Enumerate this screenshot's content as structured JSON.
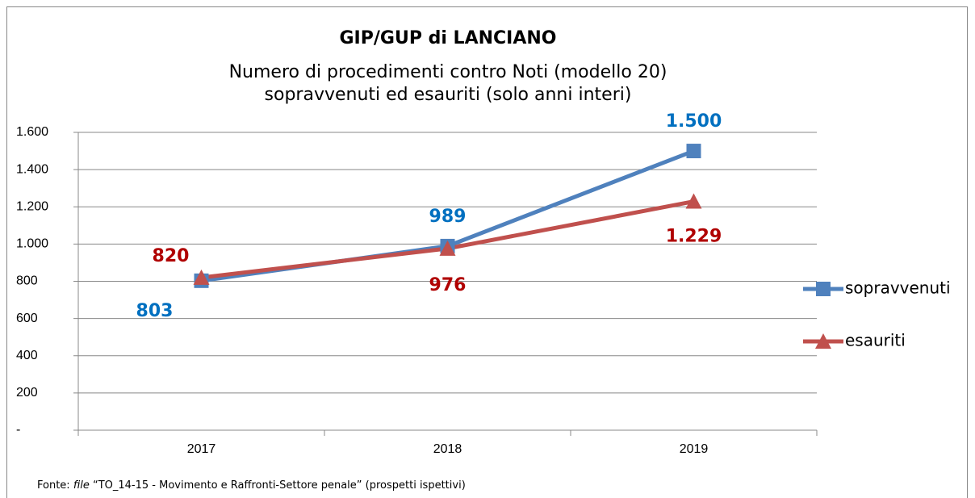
{
  "chart_data": {
    "type": "line",
    "title": "GIP/GUP di LANCIANO",
    "subtitle": [
      "Numero di procedimenti contro Noti (modello 20)",
      "sopravvenuti ed esauriti (solo anni interi)"
    ],
    "categories": [
      "2017",
      "2018",
      "2019"
    ],
    "series": [
      {
        "name": "sopravvenuti",
        "color": "#4f81bd",
        "label_color": "#0070c0",
        "marker": "square",
        "values": [
          803,
          989,
          1500
        ],
        "value_labels": [
          "803",
          "989",
          "1.500"
        ]
      },
      {
        "name": "esauriti",
        "color": "#c0504d",
        "label_color": "#b00000",
        "marker": "triangle",
        "values": [
          820,
          976,
          1229
        ],
        "value_labels": [
          "820",
          "976",
          "1.229"
        ]
      }
    ],
    "ylim": [
      0,
      1600
    ],
    "yticks": [
      {
        "value": 0,
        "label": "-"
      },
      200,
      400,
      600,
      800,
      {
        "value": 1000,
        "label": "1.000"
      },
      {
        "value": 1200,
        "label": "1.200"
      },
      {
        "value": 1400,
        "label": "1.400"
      },
      {
        "value": 1600,
        "label": "1.600"
      }
    ],
    "grid": true,
    "legend": "right",
    "source": {
      "prefix": "Fonte: ",
      "em": "file",
      "rest": " “TO_14-15 - Movimento e Raffronti-Settore penale” (prospetti ispettivi)"
    }
  }
}
